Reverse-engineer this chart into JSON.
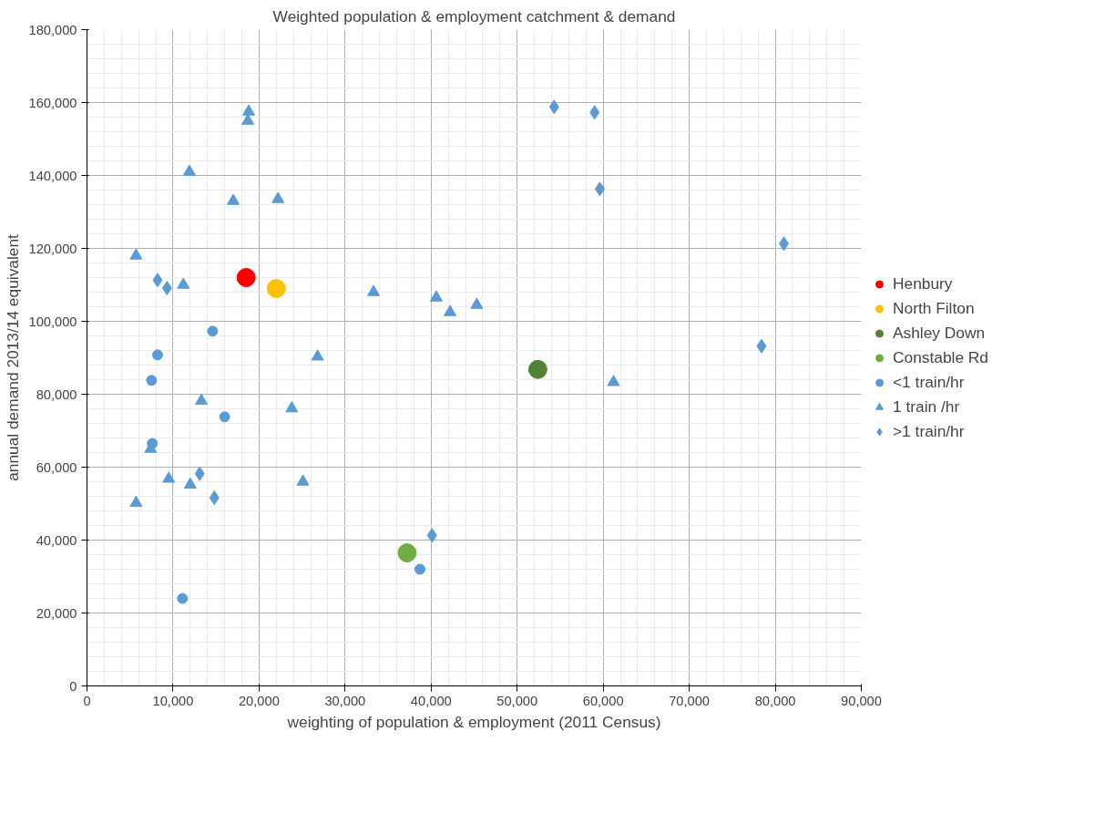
{
  "chart_data": {
    "type": "scatter",
    "title": "Weighted population & employment catchment & demand",
    "xlabel": "weighting of population & employment (2011 Census)",
    "ylabel": "annual demand 2013/14 equivalent",
    "xlim": [
      0,
      90000
    ],
    "xticks": [
      {
        "value": 0,
        "label": "0"
      },
      {
        "value": 10000,
        "label": "10,000"
      },
      {
        "value": 20000,
        "label": "20,000"
      },
      {
        "value": 30000,
        "label": "30,000"
      },
      {
        "value": 40000,
        "label": "40,000"
      },
      {
        "value": 50000,
        "label": "50,000"
      },
      {
        "value": 60000,
        "label": "60,000"
      },
      {
        "value": 70000,
        "label": "70,000"
      },
      {
        "value": 80000,
        "label": "80,000"
      },
      {
        "value": 90000,
        "label": "90,000"
      }
    ],
    "ylim": [
      0,
      180000
    ],
    "yticks": [
      {
        "value": 0,
        "label": "0"
      },
      {
        "value": 20000,
        "label": "20,000"
      },
      {
        "value": 40000,
        "label": "40,000"
      },
      {
        "value": 60000,
        "label": "60,000"
      },
      {
        "value": 80000,
        "label": "80,000"
      },
      {
        "value": 100000,
        "label": "100,000"
      },
      {
        "value": 120000,
        "label": "120,000"
      },
      {
        "value": 140000,
        "label": "140,000"
      },
      {
        "value": 160000,
        "label": "160,000"
      },
      {
        "value": 180000,
        "label": "180,000"
      }
    ],
    "grid": true,
    "legend": "right",
    "series": [
      {
        "name": "Henbury",
        "color": "#ff0000",
        "marker": "circle",
        "x": [
          18500
        ],
        "values": [
          112000
        ]
      },
      {
        "name": "North Filton",
        "color": "#ffc000",
        "marker": "circle",
        "x": [
          22000
        ],
        "values": [
          109000
        ]
      },
      {
        "name": "Ashley Down",
        "color": "#548235",
        "marker": "circle",
        "x": [
          52400
        ],
        "values": [
          86800
        ]
      },
      {
        "name": "Constable Rd",
        "color": "#70ad47",
        "marker": "circle",
        "x": [
          37200
        ],
        "values": [
          36500
        ]
      },
      {
        "name": "<1 train/hr",
        "color": "#5b9bd5",
        "marker": "circle",
        "x": [
          14600,
          8200,
          7500,
          16000,
          7600,
          11100,
          38700
        ],
        "values": [
          97300,
          90800,
          83800,
          73800,
          66500,
          24000,
          32000
        ]
      },
      {
        "name": "1 train /hr",
        "color": "#5b9bd5",
        "marker": "triangle",
        "x": [
          18800,
          18700,
          11900,
          17000,
          22200,
          5700,
          11200,
          33300,
          40600,
          42200,
          45300,
          26800,
          13300,
          23800,
          61200,
          7400,
          9500,
          12000,
          25100,
          5700
        ],
        "values": [
          157500,
          155000,
          141000,
          133000,
          133500,
          118000,
          110000,
          108000,
          106500,
          102500,
          104500,
          90300,
          78200,
          76100,
          83300,
          65000,
          56800,
          55200,
          56000,
          50200
        ]
      },
      {
        "name": ">1 train/hr",
        "color": "#5b9bd5",
        "marker": "diamond",
        "x": [
          54300,
          59000,
          59600,
          81000,
          8200,
          9300,
          78400,
          13100,
          14800,
          40100
        ],
        "values": [
          158800,
          157300,
          136300,
          121300,
          111300,
          109100,
          93200,
          58200,
          51600,
          41300
        ]
      }
    ]
  }
}
